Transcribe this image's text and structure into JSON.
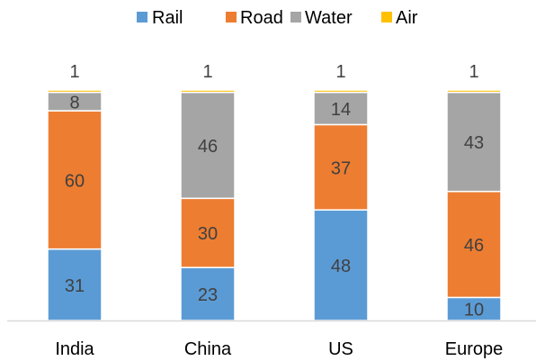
{
  "chart_data": {
    "type": "bar",
    "stacked": true,
    "categories": [
      "India",
      "China",
      "US",
      "Europe"
    ],
    "series": [
      {
        "name": "Rail",
        "color": "#5b9bd5",
        "values": [
          31,
          23,
          48,
          10
        ]
      },
      {
        "name": "Road",
        "color": "#ed7d31",
        "values": [
          60,
          30,
          37,
          46
        ]
      },
      {
        "name": "Water",
        "color": "#a5a5a5",
        "values": [
          8,
          46,
          14,
          43
        ]
      },
      {
        "name": "Air",
        "color": "#ffc000",
        "values": [
          1,
          1,
          1,
          1
        ]
      }
    ],
    "title": "",
    "xlabel": "",
    "ylabel": "",
    "ylim": [
      0,
      100
    ],
    "grid": false,
    "legend_position": "top",
    "colors": {
      "axis": "#d9d9d9",
      "label_text": "#404040",
      "tick_text": "#000000",
      "legend_text": "#000000"
    }
  }
}
